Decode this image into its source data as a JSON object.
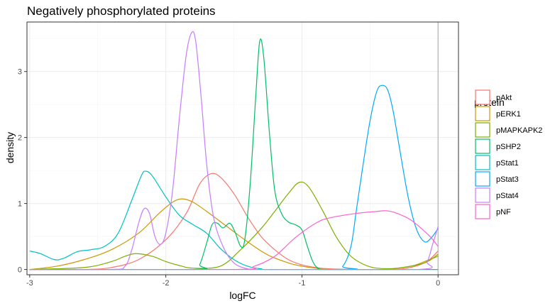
{
  "chart_data": {
    "type": "line",
    "title": "Negatively phosphorylated proteins",
    "xlabel": "logFC",
    "ylabel": "density",
    "xlim": [
      -3.02,
      0.15
    ],
    "ylim": [
      -0.08,
      3.75
    ],
    "x_ticks": [
      -3,
      -2,
      -1,
      0
    ],
    "x_tick_labels": [
      "-3",
      "-2",
      "-1",
      "0"
    ],
    "y_ticks": [
      0,
      1,
      2,
      3
    ],
    "y_tick_labels": [
      "0",
      "1",
      "2",
      "3"
    ],
    "grid": true,
    "vertical_reference_line_x": 0,
    "legend": {
      "title": "protein",
      "placement": "right"
    },
    "series": [
      {
        "name": "pAkt",
        "color": "#F8766D",
        "points": [
          [
            -3.0,
            0
          ],
          [
            -2.6,
            0
          ],
          [
            -2.4,
            0.03
          ],
          [
            -2.2,
            0.15
          ],
          [
            -2.0,
            0.45
          ],
          [
            -1.85,
            0.85
          ],
          [
            -1.75,
            1.3
          ],
          [
            -1.67,
            1.45
          ],
          [
            -1.6,
            1.4
          ],
          [
            -1.5,
            1.15
          ],
          [
            -1.4,
            0.8
          ],
          [
            -1.3,
            0.5
          ],
          [
            -1.2,
            0.3
          ],
          [
            -1.1,
            0.15
          ],
          [
            -1.0,
            0.07
          ],
          [
            -0.9,
            0.03
          ],
          [
            -0.8,
            0.01
          ],
          [
            -0.6,
            0
          ],
          [
            -0.3,
            0
          ],
          [
            -0.1,
            0.1
          ],
          [
            0,
            0.28
          ]
        ]
      },
      {
        "name": "pERK1",
        "color": "#CD9600",
        "points": [
          [
            -3.0,
            0
          ],
          [
            -2.8,
            0.05
          ],
          [
            -2.6,
            0.15
          ],
          [
            -2.4,
            0.3
          ],
          [
            -2.2,
            0.55
          ],
          [
            -2.05,
            0.85
          ],
          [
            -1.95,
            1.02
          ],
          [
            -1.88,
            1.07
          ],
          [
            -1.8,
            1.02
          ],
          [
            -1.7,
            0.88
          ],
          [
            -1.55,
            0.65
          ],
          [
            -1.4,
            0.42
          ],
          [
            -1.25,
            0.22
          ],
          [
            -1.1,
            0.1
          ],
          [
            -1.0,
            0.05
          ],
          [
            -0.9,
            0.02
          ],
          [
            -0.8,
            0
          ],
          [
            -0.4,
            0
          ],
          [
            -0.2,
            0.05
          ],
          [
            -0.1,
            0.12
          ],
          [
            0,
            0.2
          ]
        ]
      },
      {
        "name": "pMAPKAPK2",
        "color": "#7CAE00",
        "points": [
          [
            -3.0,
            0
          ],
          [
            -2.6,
            0.03
          ],
          [
            -2.4,
            0.12
          ],
          [
            -2.3,
            0.2
          ],
          [
            -2.22,
            0.24
          ],
          [
            -2.1,
            0.2
          ],
          [
            -2.0,
            0.12
          ],
          [
            -1.9,
            0.06
          ],
          [
            -1.8,
            0.02
          ],
          [
            -1.6,
            0.05
          ],
          [
            -1.45,
            0.3
          ],
          [
            -1.3,
            0.62
          ],
          [
            -1.2,
            0.88
          ],
          [
            -1.1,
            1.15
          ],
          [
            -1.02,
            1.32
          ],
          [
            -0.95,
            1.25
          ],
          [
            -0.85,
            0.9
          ],
          [
            -0.75,
            0.5
          ],
          [
            -0.65,
            0.22
          ],
          [
            -0.55,
            0.08
          ],
          [
            -0.45,
            0.02
          ],
          [
            -0.3,
            0.02
          ],
          [
            -0.1,
            0.1
          ],
          [
            0,
            0.23
          ]
        ]
      },
      {
        "name": "pSHP2",
        "color": "#00BE67",
        "points": [
          [
            -3.0,
            0
          ],
          [
            -1.8,
            0
          ],
          [
            -1.75,
            0.08
          ],
          [
            -1.7,
            0.4
          ],
          [
            -1.66,
            0.68
          ],
          [
            -1.62,
            0.7
          ],
          [
            -1.58,
            0.63
          ],
          [
            -1.53,
            0.7
          ],
          [
            -1.49,
            0.56
          ],
          [
            -1.45,
            0.35
          ],
          [
            -1.42,
            0.45
          ],
          [
            -1.38,
            1.3
          ],
          [
            -1.34,
            2.6
          ],
          [
            -1.31,
            3.46
          ],
          [
            -1.28,
            3.2
          ],
          [
            -1.24,
            2.1
          ],
          [
            -1.2,
            1.2
          ],
          [
            -1.15,
            0.85
          ],
          [
            -1.1,
            0.72
          ],
          [
            -1.05,
            0.68
          ],
          [
            -1.0,
            0.6
          ],
          [
            -0.96,
            0.35
          ],
          [
            -0.92,
            0.12
          ],
          [
            -0.88,
            0.02
          ],
          [
            -0.8,
            0
          ],
          [
            0,
            0
          ]
        ]
      },
      {
        "name": "pStat1",
        "color": "#00BFC4",
        "points": [
          [
            -3.0,
            0.28
          ],
          [
            -2.92,
            0.24
          ],
          [
            -2.82,
            0.15
          ],
          [
            -2.75,
            0.17
          ],
          [
            -2.65,
            0.27
          ],
          [
            -2.55,
            0.3
          ],
          [
            -2.45,
            0.35
          ],
          [
            -2.35,
            0.55
          ],
          [
            -2.25,
            1.05
          ],
          [
            -2.18,
            1.42
          ],
          [
            -2.15,
            1.49
          ],
          [
            -2.1,
            1.42
          ],
          [
            -2.0,
            1.1
          ],
          [
            -1.9,
            0.82
          ],
          [
            -1.8,
            0.68
          ],
          [
            -1.7,
            0.55
          ],
          [
            -1.6,
            0.32
          ],
          [
            -1.5,
            0.15
          ],
          [
            -1.4,
            0.05
          ],
          [
            -1.3,
            0.01
          ],
          [
            -1.2,
            0
          ],
          [
            0,
            0
          ]
        ]
      },
      {
        "name": "pStat3",
        "color": "#00A9FF",
        "points": [
          [
            -3.0,
            0
          ],
          [
            -0.78,
            0
          ],
          [
            -0.7,
            0.05
          ],
          [
            -0.64,
            0.35
          ],
          [
            -0.6,
            0.9
          ],
          [
            -0.55,
            1.6
          ],
          [
            -0.5,
            2.25
          ],
          [
            -0.45,
            2.7
          ],
          [
            -0.41,
            2.79
          ],
          [
            -0.37,
            2.72
          ],
          [
            -0.33,
            2.4
          ],
          [
            -0.28,
            1.8
          ],
          [
            -0.22,
            1.1
          ],
          [
            -0.16,
            0.62
          ],
          [
            -0.1,
            0.42
          ],
          [
            -0.05,
            0.48
          ],
          [
            0,
            0.62
          ]
        ]
      },
      {
        "name": "pStat4",
        "color": "#C77CFF",
        "points": [
          [
            -3.0,
            0
          ],
          [
            -2.4,
            0
          ],
          [
            -2.3,
            0.05
          ],
          [
            -2.25,
            0.3
          ],
          [
            -2.2,
            0.7
          ],
          [
            -2.16,
            0.92
          ],
          [
            -2.12,
            0.85
          ],
          [
            -2.08,
            0.5
          ],
          [
            -2.04,
            0.38
          ],
          [
            -2.0,
            0.55
          ],
          [
            -1.95,
            1.2
          ],
          [
            -1.9,
            2.3
          ],
          [
            -1.85,
            3.25
          ],
          [
            -1.81,
            3.59
          ],
          [
            -1.78,
            3.45
          ],
          [
            -1.74,
            2.6
          ],
          [
            -1.7,
            1.6
          ],
          [
            -1.65,
            0.8
          ],
          [
            -1.58,
            0.35
          ],
          [
            -1.5,
            0.1
          ],
          [
            -1.4,
            0.01
          ],
          [
            -1.3,
            0
          ],
          [
            -0.15,
            0
          ],
          [
            -0.08,
            0.12
          ],
          [
            -0.04,
            0.38
          ],
          [
            0,
            0.65
          ]
        ]
      },
      {
        "name": "pNF",
        "color": "#FF61CC",
        "points": [
          [
            -3.0,
            0
          ],
          [
            -1.5,
            0
          ],
          [
            -1.35,
            0.05
          ],
          [
            -1.2,
            0.2
          ],
          [
            -1.05,
            0.48
          ],
          [
            -0.9,
            0.7
          ],
          [
            -0.8,
            0.78
          ],
          [
            -0.6,
            0.85
          ],
          [
            -0.45,
            0.88
          ],
          [
            -0.38,
            0.89
          ],
          [
            -0.3,
            0.85
          ],
          [
            -0.2,
            0.75
          ],
          [
            -0.1,
            0.58
          ],
          [
            -0.05,
            0.48
          ],
          [
            0,
            0.35
          ]
        ]
      }
    ]
  }
}
